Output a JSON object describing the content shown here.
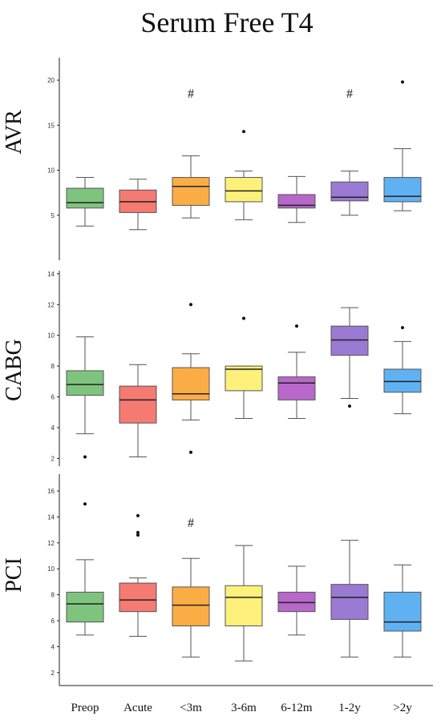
{
  "chart_data": {
    "type": "box",
    "title": "Serum Free T4",
    "categories": [
      "Preop",
      "Acute",
      "<3m",
      "3-6m",
      "6-12m",
      "1-2y",
      ">2y"
    ],
    "colors": [
      "#7ec47e",
      "#f47a72",
      "#fbad45",
      "#fdf07b",
      "#b768c9",
      "#9a7ad3",
      "#60b1f2"
    ],
    "panels": [
      {
        "label": "AVR",
        "ylim": [
          0,
          22.5
        ],
        "yticks": [
          5,
          10,
          15,
          20
        ],
        "boxes": [
          {
            "whislo": 3.8,
            "q1": 5.8,
            "med": 6.4,
            "q3": 8.0,
            "whishi": 9.2,
            "fliers": []
          },
          {
            "whislo": 3.4,
            "q1": 5.3,
            "med": 6.5,
            "q3": 7.8,
            "whishi": 9.0,
            "fliers": []
          },
          {
            "whislo": 4.7,
            "q1": 6.1,
            "med": 8.2,
            "q3": 9.2,
            "whishi": 11.6,
            "fliers": []
          },
          {
            "whislo": 4.5,
            "q1": 6.5,
            "med": 7.7,
            "q3": 9.2,
            "whishi": 9.9,
            "fliers": [
              14.3
            ]
          },
          {
            "whislo": 4.2,
            "q1": 5.8,
            "med": 6.1,
            "q3": 7.3,
            "whishi": 9.3,
            "fliers": []
          },
          {
            "whislo": 5.0,
            "q1": 6.6,
            "med": 7.0,
            "q3": 8.7,
            "whishi": 9.9,
            "fliers": []
          },
          {
            "whislo": 5.5,
            "q1": 6.5,
            "med": 7.1,
            "q3": 9.2,
            "whishi": 12.4,
            "fliers": [
              19.8
            ]
          }
        ],
        "annotations": [
          {
            "category": "<3m",
            "text": "#",
            "y": 18.6
          },
          {
            "category": "1-2y",
            "text": "#",
            "y": 18.6
          }
        ]
      },
      {
        "label": "CABG",
        "ylim": [
          1.5,
          14.2
        ],
        "yticks": [
          2,
          4,
          6,
          8,
          10,
          12,
          14
        ],
        "boxes": [
          {
            "whislo": 3.6,
            "q1": 6.1,
            "med": 6.8,
            "q3": 7.7,
            "whishi": 9.9,
            "fliers": [
              2.1
            ]
          },
          {
            "whislo": 2.1,
            "q1": 4.3,
            "med": 5.8,
            "q3": 6.7,
            "whishi": 8.1,
            "fliers": []
          },
          {
            "whislo": 4.5,
            "q1": 5.8,
            "med": 6.2,
            "q3": 7.9,
            "whishi": 8.8,
            "fliers": [
              12.0,
              2.4
            ]
          },
          {
            "whislo": 4.6,
            "q1": 6.4,
            "med": 7.8,
            "q3": 8.0,
            "whishi": 8.0,
            "fliers": [
              11.1
            ]
          },
          {
            "whislo": 4.6,
            "q1": 5.8,
            "med": 6.9,
            "q3": 7.3,
            "whishi": 8.9,
            "fliers": [
              10.6
            ]
          },
          {
            "whislo": 5.9,
            "q1": 8.7,
            "med": 9.7,
            "q3": 10.6,
            "whishi": 11.8,
            "fliers": [
              5.4
            ]
          },
          {
            "whislo": 4.9,
            "q1": 6.3,
            "med": 7.0,
            "q3": 7.8,
            "whishi": 9.6,
            "fliers": [
              10.5
            ]
          }
        ],
        "annotations": []
      },
      {
        "label": "PCI",
        "ylim": [
          1,
          17.3
        ],
        "yticks": [
          2,
          4,
          6,
          8,
          10,
          12,
          14,
          16
        ],
        "boxes": [
          {
            "whislo": 4.9,
            "q1": 5.9,
            "med": 7.3,
            "q3": 8.2,
            "whishi": 10.7,
            "fliers": [
              15.0
            ]
          },
          {
            "whislo": 4.8,
            "q1": 6.7,
            "med": 7.6,
            "q3": 8.9,
            "whishi": 9.3,
            "fliers": [
              14.1,
              12.8,
              12.6
            ]
          },
          {
            "whislo": 3.2,
            "q1": 5.6,
            "med": 7.2,
            "q3": 8.6,
            "whishi": 10.8,
            "fliers": []
          },
          {
            "whislo": 2.9,
            "q1": 5.6,
            "med": 7.8,
            "q3": 8.7,
            "whishi": 11.8,
            "fliers": []
          },
          {
            "whislo": 4.9,
            "q1": 6.7,
            "med": 7.4,
            "q3": 8.2,
            "whishi": 10.2,
            "fliers": []
          },
          {
            "whislo": 3.2,
            "q1": 6.1,
            "med": 7.8,
            "q3": 8.8,
            "whishi": 12.2,
            "fliers": []
          },
          {
            "whislo": 3.2,
            "q1": 5.2,
            "med": 5.9,
            "q3": 8.2,
            "whishi": 10.3,
            "fliers": []
          }
        ],
        "annotations": [
          {
            "category": "<3m",
            "text": "#",
            "y": 13.6
          }
        ]
      }
    ]
  }
}
